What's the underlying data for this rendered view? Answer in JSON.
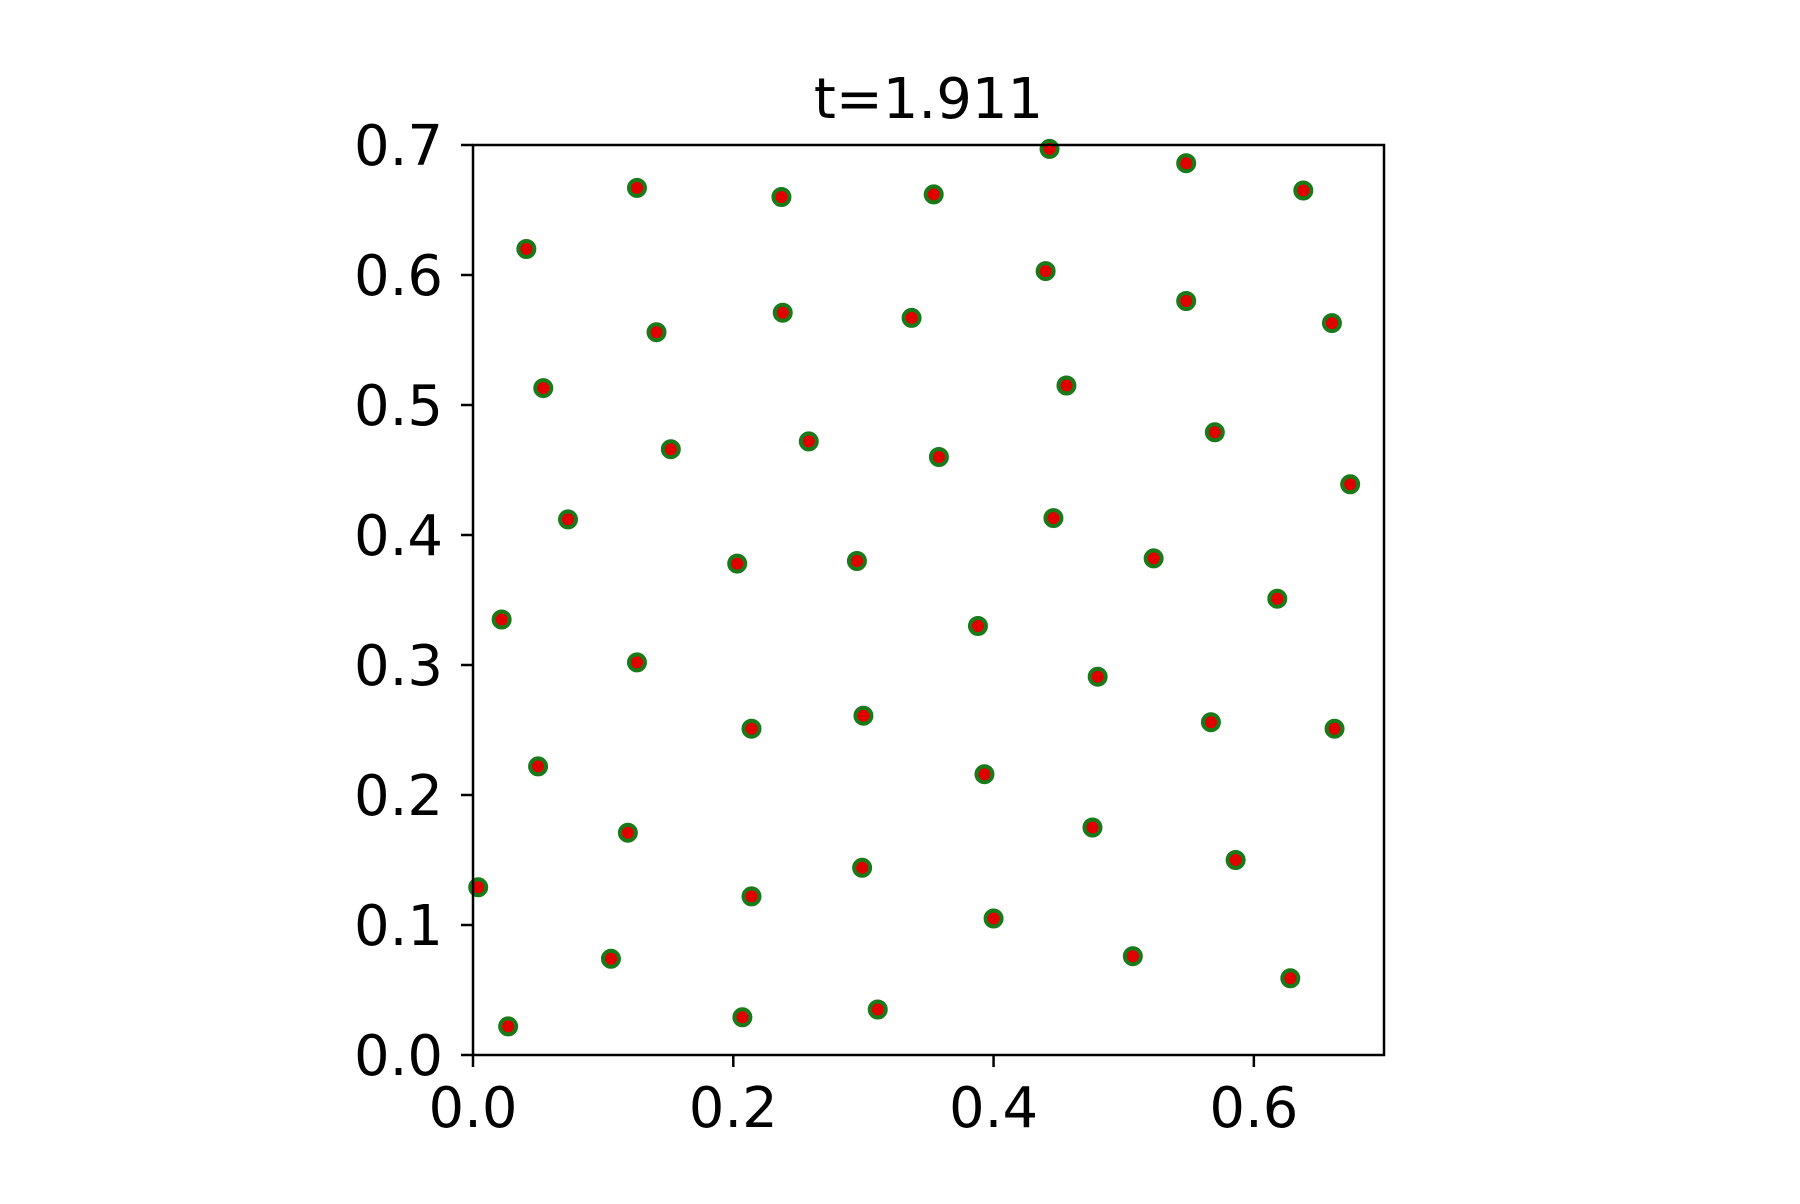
{
  "chart_data": {
    "type": "scatter",
    "title": "t=1.911",
    "xlabel": "",
    "ylabel": "",
    "xlim": [
      0.0,
      0.7
    ],
    "ylim": [
      0.0,
      0.7
    ],
    "grid": false,
    "legend": "none",
    "x_ticks": [
      "0.0",
      "0.2",
      "0.4",
      "0.6"
    ],
    "y_ticks": [
      "0.0",
      "0.1",
      "0.2",
      "0.3",
      "0.4",
      "0.5",
      "0.6",
      "0.7"
    ],
    "marker_edge_color": "#1a7a1a",
    "marker_face_color": "#e00000",
    "series": [
      {
        "points": [
          [
            0.443,
            0.697
          ],
          [
            0.548,
            0.686
          ],
          [
            0.638,
            0.665
          ],
          [
            0.126,
            0.667
          ],
          [
            0.237,
            0.66
          ],
          [
            0.354,
            0.662
          ],
          [
            0.041,
            0.62
          ],
          [
            0.44,
            0.603
          ],
          [
            0.548,
            0.58
          ],
          [
            0.66,
            0.563
          ],
          [
            0.238,
            0.571
          ],
          [
            0.337,
            0.567
          ],
          [
            0.141,
            0.556
          ],
          [
            0.054,
            0.513
          ],
          [
            0.456,
            0.515
          ],
          [
            0.57,
            0.479
          ],
          [
            0.152,
            0.466
          ],
          [
            0.258,
            0.472
          ],
          [
            0.358,
            0.46
          ],
          [
            0.674,
            0.439
          ],
          [
            0.073,
            0.412
          ],
          [
            0.446,
            0.413
          ],
          [
            0.523,
            0.382
          ],
          [
            0.203,
            0.378
          ],
          [
            0.295,
            0.38
          ],
          [
            0.618,
            0.351
          ],
          [
            0.022,
            0.335
          ],
          [
            0.388,
            0.33
          ],
          [
            0.126,
            0.302
          ],
          [
            0.48,
            0.291
          ],
          [
            0.3,
            0.261
          ],
          [
            0.567,
            0.256
          ],
          [
            0.214,
            0.251
          ],
          [
            0.662,
            0.251
          ],
          [
            0.05,
            0.222
          ],
          [
            0.393,
            0.216
          ],
          [
            0.476,
            0.175
          ],
          [
            0.119,
            0.171
          ],
          [
            0.586,
            0.15
          ],
          [
            0.299,
            0.144
          ],
          [
            0.004,
            0.129
          ],
          [
            0.214,
            0.122
          ],
          [
            0.4,
            0.105
          ],
          [
            0.106,
            0.074
          ],
          [
            0.507,
            0.076
          ],
          [
            0.628,
            0.059
          ],
          [
            0.311,
            0.035
          ],
          [
            0.207,
            0.029
          ],
          [
            0.027,
            0.022
          ]
        ]
      }
    ]
  }
}
